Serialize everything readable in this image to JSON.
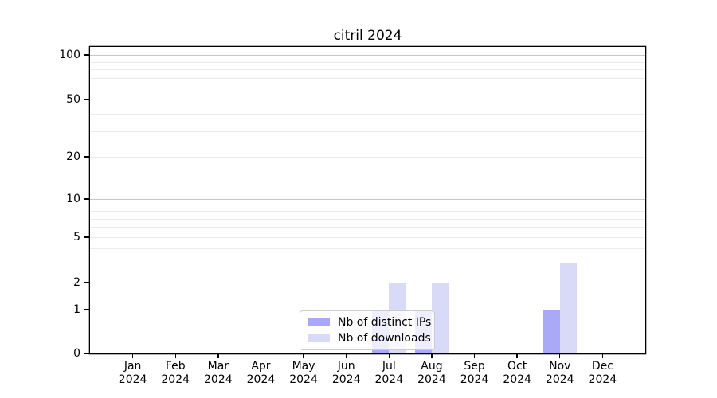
{
  "chart_data": {
    "type": "bar",
    "title": "citril 2024",
    "categories": [
      "Jan",
      "Feb",
      "Mar",
      "Apr",
      "May",
      "Jun",
      "Jul",
      "Aug",
      "Sep",
      "Oct",
      "Nov",
      "Dec"
    ],
    "x_tick_year": "2024",
    "series": [
      {
        "name": "Nb of distinct IPs",
        "color": "#a9a9f8",
        "values": [
          0,
          0,
          0,
          0,
          0,
          0,
          1,
          1,
          0,
          0,
          1,
          0
        ]
      },
      {
        "name": "Nb of downloads",
        "color": "#d9d9f8",
        "values": [
          0,
          0,
          0,
          0,
          0,
          0,
          2,
          2,
          0,
          0,
          3,
          0
        ]
      }
    ],
    "yscale": "log-like (0,1,2,5,10,20,50,100 ticks, linear 0-1 segment)",
    "ylabel": "",
    "xlabel": "",
    "y_tick_values": [
      0,
      1,
      2,
      5,
      10,
      20,
      50,
      100
    ],
    "y_tick_labels": [
      "0",
      "1",
      "2",
      "5",
      "10",
      "20",
      "50",
      "100"
    ],
    "y_major_gridlines": [
      1,
      10,
      100
    ],
    "y_minor_gridlines": [
      2,
      3,
      4,
      5,
      6,
      7,
      8,
      9,
      20,
      30,
      40,
      50,
      60,
      70,
      80,
      90
    ],
    "grid": true,
    "legend_position": "inside lower-center",
    "bar_color_dark": "#a9a9f8",
    "bar_color_light": "#d9d9f8",
    "grid_major_color": "#c6c6c6",
    "grid_minor_color": "#ebebeb",
    "legend_border_color": "#cccccc"
  }
}
